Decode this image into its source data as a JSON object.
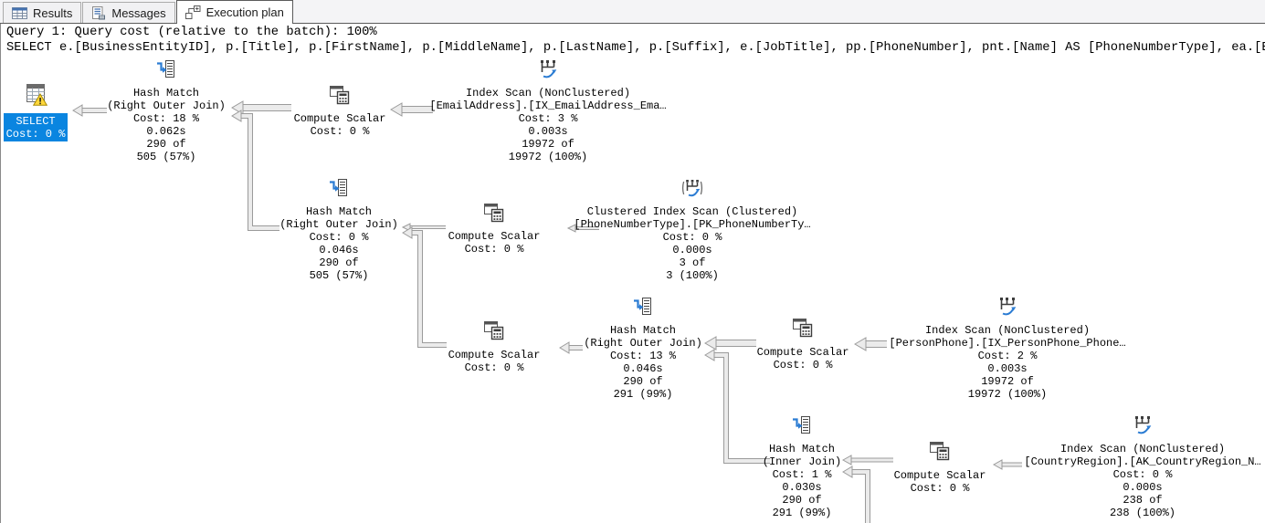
{
  "tabs": [
    {
      "label": "Results",
      "active": false
    },
    {
      "label": "Messages",
      "active": false
    },
    {
      "label": "Execution plan",
      "active": true
    }
  ],
  "header": {
    "query_cost_line": "Query 1: Query cost (relative to the batch): 100%",
    "sql_text": "SELECT e.[BusinessEntityID], p.[Title], p.[FirstName], p.[MiddleName], p.[LastName], p.[Suffix], e.[JobTitle], pp.[PhoneNumber], pnt.[Name] AS [PhoneNumberType], ea.[E"
  },
  "colors": {
    "selection_blue": "#0a85e0",
    "warning_yellow": "#ffd83b",
    "arrow_fill": "#ebebeb",
    "arrow_border": "#9b9b9b"
  },
  "plan": {
    "nodes": [
      {
        "id": "select",
        "icon": "result",
        "selected": true,
        "warning": true,
        "lines": [
          "SELECT",
          "Cost: 0 %"
        ]
      },
      {
        "id": "hash-match-1",
        "icon": "hash-match",
        "lines": [
          "Hash Match",
          "(Right Outer Join)",
          "Cost: 18 %",
          "0.062s",
          "290 of",
          "505 (57%)"
        ]
      },
      {
        "id": "compute-scalar-1",
        "icon": "compute-scalar",
        "lines": [
          "Compute Scalar",
          "Cost: 0 %"
        ]
      },
      {
        "id": "index-scan-emailaddress",
        "icon": "index-scan",
        "lines": [
          "Index Scan (NonClustered)",
          "[EmailAddress].[IX_EmailAddress_Ema…",
          "Cost: 3 %",
          "0.003s",
          "19972 of",
          "19972 (100%)"
        ]
      },
      {
        "id": "hash-match-2",
        "icon": "hash-match",
        "lines": [
          "Hash Match",
          "(Right Outer Join)",
          "Cost: 0 %",
          "0.046s",
          "290 of",
          "505 (57%)"
        ]
      },
      {
        "id": "compute-scalar-2",
        "icon": "compute-scalar",
        "lines": [
          "Compute Scalar",
          "Cost: 0 %"
        ]
      },
      {
        "id": "clustered-index-scan-phonenumbertype",
        "icon": "clustered-index-scan",
        "lines": [
          "Clustered Index Scan (Clustered)",
          "[PhoneNumberType].[PK_PhoneNumberTy…",
          "Cost: 0 %",
          "0.000s",
          "3 of",
          "3 (100%)"
        ]
      },
      {
        "id": "compute-scalar-3",
        "icon": "compute-scalar",
        "lines": [
          "Compute Scalar",
          "Cost: 0 %"
        ]
      },
      {
        "id": "hash-match-3",
        "icon": "hash-match",
        "lines": [
          "Hash Match",
          "(Right Outer Join)",
          "Cost: 13 %",
          "0.046s",
          "290 of",
          "291 (99%)"
        ]
      },
      {
        "id": "compute-scalar-4",
        "icon": "compute-scalar",
        "lines": [
          "Compute Scalar",
          "Cost: 0 %"
        ]
      },
      {
        "id": "index-scan-personphone",
        "icon": "index-scan",
        "lines": [
          "Index Scan (NonClustered)",
          "[PersonPhone].[IX_PersonPhone_Phone…",
          "Cost: 2 %",
          "0.003s",
          "19972 of",
          "19972 (100%)"
        ]
      },
      {
        "id": "hash-match-4",
        "icon": "hash-match",
        "lines": [
          "Hash Match",
          "(Inner Join)",
          "Cost: 1 %",
          "0.030s",
          "290 of",
          "291 (99%)"
        ]
      },
      {
        "id": "compute-scalar-5",
        "icon": "compute-scalar",
        "lines": [
          "Compute Scalar",
          "Cost: 0 %"
        ]
      },
      {
        "id": "index-scan-countryregion",
        "icon": "index-scan",
        "lines": [
          "Index Scan (NonClustered)",
          "[CountryRegion].[AK_CountryRegion_N…",
          "Cost: 0 %",
          "0.000s",
          "238 of",
          "238 (100%)"
        ]
      }
    ],
    "edges": [
      {
        "from": "hash-match-1",
        "to": "select"
      },
      {
        "from": "compute-scalar-1",
        "to": "hash-match-1"
      },
      {
        "from": "index-scan-emailaddress",
        "to": "compute-scalar-1"
      },
      {
        "from": "hash-match-2",
        "to": "hash-match-1"
      },
      {
        "from": "compute-scalar-2",
        "to": "hash-match-2"
      },
      {
        "from": "compute-scalar-3",
        "to": "hash-match-2"
      },
      {
        "from": "clustered-index-scan-phonenumbertype",
        "to": "compute-scalar-2"
      },
      {
        "from": "hash-match-3",
        "to": "compute-scalar-3"
      },
      {
        "from": "compute-scalar-4",
        "to": "hash-match-3"
      },
      {
        "from": "hash-match-4",
        "to": "hash-match-3"
      },
      {
        "from": "index-scan-personphone",
        "to": "compute-scalar-4"
      },
      {
        "from": "compute-scalar-5",
        "to": "hash-match-4"
      },
      {
        "from": "offscreen-operator",
        "to": "hash-match-4"
      },
      {
        "from": "index-scan-countryregion",
        "to": "compute-scalar-5"
      }
    ]
  }
}
